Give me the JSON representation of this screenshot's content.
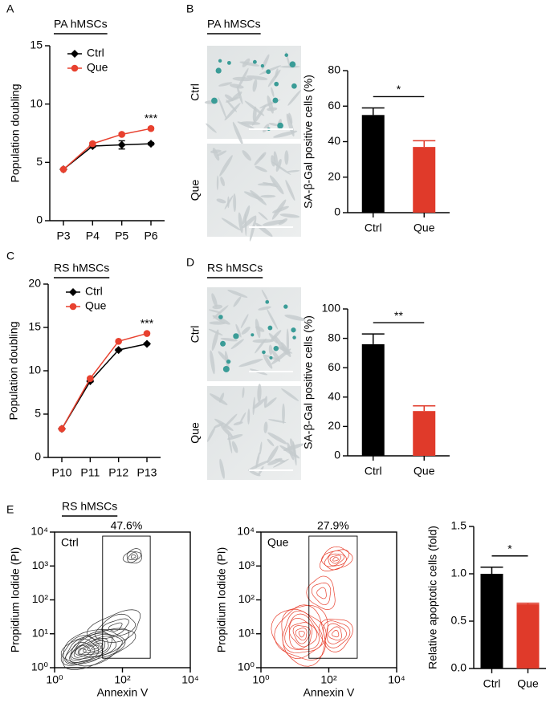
{
  "chart_data": [
    {
      "type": "line",
      "panel": "A",
      "header": "PA hMSCs",
      "ylabel": "Population doubling",
      "categories": [
        "P3",
        "P4",
        "P5",
        "P6"
      ],
      "series": [
        {
          "name": "Ctrl",
          "color": "#000000",
          "marker": "diamond",
          "values": [
            4.4,
            6.4,
            6.5,
            6.6
          ],
          "errors": [
            0,
            0.1,
            0.35,
            0.1
          ]
        },
        {
          "name": "Que",
          "color": "#e8412f",
          "marker": "circle",
          "values": [
            4.4,
            6.6,
            7.4,
            7.9
          ],
          "errors": [
            0,
            0.1,
            0.1,
            0.1
          ]
        }
      ],
      "ylim": [
        0,
        15
      ],
      "yticks": [
        0,
        5,
        10,
        15
      ],
      "annotation": "***"
    },
    {
      "type": "bar",
      "panel": "B",
      "header": "PA hMSCs",
      "image_labels": [
        "Ctrl",
        "Que"
      ],
      "ylabel": "SA-β-Gal positive cells (%)",
      "categories": [
        "Ctrl",
        "Que"
      ],
      "values": [
        55,
        37
      ],
      "errors": [
        4,
        3.5
      ],
      "colors": [
        "#000000",
        "#e03a2a"
      ],
      "ylim": [
        0,
        80
      ],
      "yticks": [
        0,
        20,
        40,
        60,
        80
      ],
      "significance": "*"
    },
    {
      "type": "line",
      "panel": "C",
      "header": "RS hMSCs",
      "ylabel": "Population doubling",
      "categories": [
        "P10",
        "P11",
        "P12",
        "P13"
      ],
      "series": [
        {
          "name": "Ctrl",
          "color": "#000000",
          "marker": "diamond",
          "values": [
            3.3,
            8.8,
            12.4,
            13.1
          ],
          "errors": [
            0,
            0.1,
            0.1,
            0.1
          ]
        },
        {
          "name": "Que",
          "color": "#e8412f",
          "marker": "circle",
          "values": [
            3.3,
            9.1,
            13.4,
            14.3
          ],
          "errors": [
            0,
            0.1,
            0.1,
            0.1
          ]
        }
      ],
      "ylim": [
        0,
        20
      ],
      "yticks": [
        0,
        5,
        10,
        15,
        20
      ],
      "annotation": "***"
    },
    {
      "type": "bar",
      "panel": "D",
      "header": "RS hMSCs",
      "image_labels": [
        "Ctrl",
        "Que"
      ],
      "ylabel": "SA-β-Gal positive cells (%)",
      "categories": [
        "Ctrl",
        "Que"
      ],
      "values": [
        76,
        30.5
      ],
      "errors": [
        7,
        3.5
      ],
      "colors": [
        "#000000",
        "#e03a2a"
      ],
      "ylim": [
        0,
        100
      ],
      "yticks": [
        0,
        20,
        40,
        60,
        80,
        100
      ],
      "significance": "**"
    },
    {
      "type": "contour",
      "panel": "E",
      "header": "RS hMSCs",
      "sample": "Ctrl",
      "gate_label": "47.6%",
      "color": "#333333",
      "xlabel": "Annexin V",
      "ylabel": "Propidium Iodide (PI)",
      "log_scale": true,
      "xlim": [
        1,
        10000
      ],
      "ylim": [
        1,
        10000
      ],
      "xticks": [
        {
          "value": 1,
          "label": "10⁰"
        },
        {
          "value": 100,
          "label": "10²"
        },
        {
          "value": 10000,
          "label": "10⁴"
        }
      ],
      "yticks": [
        {
          "value": 1,
          "label": "10⁰"
        },
        {
          "value": 10,
          "label": "10¹"
        },
        {
          "value": 100,
          "label": "10²"
        },
        {
          "value": 1000,
          "label": "10³"
        },
        {
          "value": 10000,
          "label": "10⁴"
        }
      ],
      "gate": {
        "x": [
          26,
          660
        ],
        "y": [
          1.9,
          7600
        ]
      }
    },
    {
      "type": "contour",
      "sample": "Que",
      "gate_label": "27.9%",
      "color": "#e8412f",
      "xlabel": "Annexin V",
      "ylabel": "Propidium Iodide (PI)",
      "log_scale": true,
      "xlim": [
        1,
        10000
      ],
      "ylim": [
        1,
        10000
      ],
      "xticks": [
        {
          "value": 1,
          "label": "10⁰"
        },
        {
          "value": 100,
          "label": "10²"
        },
        {
          "value": 10000,
          "label": "10⁴"
        }
      ],
      "yticks": [
        {
          "value": 1,
          "label": "10⁰"
        },
        {
          "value": 10,
          "label": "10¹"
        },
        {
          "value": 100,
          "label": "10²"
        },
        {
          "value": 1000,
          "label": "10³"
        },
        {
          "value": 10000,
          "label": "10⁴"
        }
      ],
      "gate": {
        "x": [
          26,
          690
        ],
        "y": [
          1.9,
          7600
        ]
      }
    },
    {
      "type": "bar",
      "ylabel": "Relative apoptotic cells (fold)",
      "categories": [
        "Ctrl",
        "Que"
      ],
      "values": [
        1.0,
        0.68
      ],
      "errors": [
        0.07,
        0.01
      ],
      "colors": [
        "#000000",
        "#e03a2a"
      ],
      "ylim": [
        0,
        1.5
      ],
      "yticks": [
        {
          "value": 0,
          "label": "0.0"
        },
        {
          "value": 0.5,
          "label": "0.5"
        },
        {
          "value": 1,
          "label": "1.0"
        },
        {
          "value": 1.5,
          "label": "1.5"
        }
      ],
      "significance": "*"
    }
  ]
}
